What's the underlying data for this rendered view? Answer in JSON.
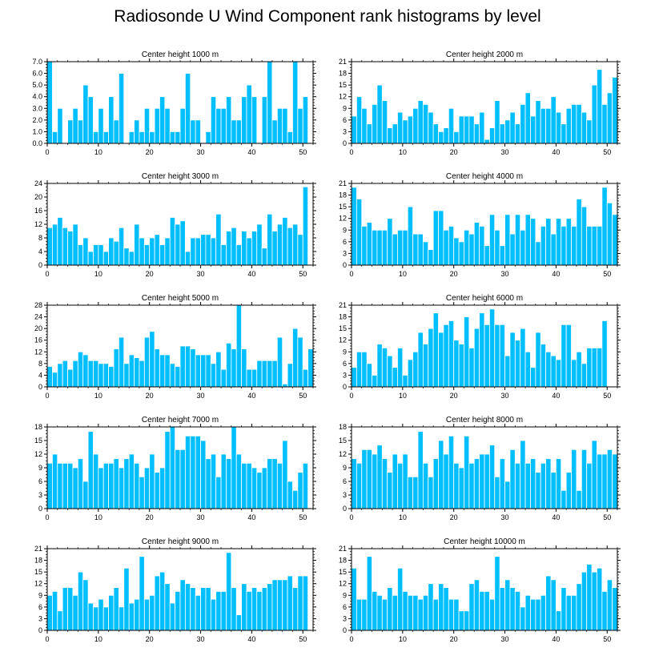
{
  "title": "Radiosonde U Wind Component rank histograms by level",
  "colors": {
    "bar": "#00BFFF",
    "bar_edge": "#ffffff",
    "axis": "#000000"
  },
  "chart_data": [
    {
      "type": "bar",
      "title": "Center height 1000 m",
      "xlim": [
        0,
        52
      ],
      "ylim": [
        0,
        7
      ],
      "yticks": [
        0,
        1,
        2,
        3,
        4,
        5,
        6,
        7
      ],
      "ytick_labels": [
        "0.0",
        "1.0",
        "2.0",
        "3.0",
        "4.0",
        "5.0",
        "6.0",
        "7.0"
      ],
      "xticks": [
        0,
        10,
        20,
        30,
        40,
        50
      ],
      "values": [
        7,
        1,
        3,
        0,
        2,
        3,
        2,
        5,
        4,
        1,
        3,
        1,
        4,
        2,
        6,
        0,
        1,
        2,
        1,
        3,
        1,
        3,
        4,
        3,
        1,
        1,
        3,
        6,
        2,
        2,
        0,
        1,
        4,
        3,
        3,
        4,
        2,
        2,
        4,
        5,
        4,
        0,
        4,
        7,
        2,
        3,
        3,
        1,
        7,
        3,
        4
      ]
    },
    {
      "type": "bar",
      "title": "Center height 2000 m",
      "xlim": [
        0,
        52
      ],
      "ylim": [
        0,
        21
      ],
      "yticks": [
        0,
        3,
        6,
        9,
        12,
        15,
        18,
        21
      ],
      "ytick_labels": [
        "0",
        "3",
        "6",
        "9",
        "12",
        "15",
        "18",
        "21"
      ],
      "xticks": [
        0,
        10,
        20,
        30,
        40,
        50
      ],
      "values": [
        7,
        12,
        9,
        5,
        10,
        15,
        11,
        4,
        5,
        8,
        6,
        7,
        9,
        11,
        10,
        8,
        5,
        3,
        4,
        9,
        3,
        7,
        7,
        7,
        5,
        8,
        1,
        4,
        11,
        5,
        6,
        8,
        5,
        10,
        13,
        7,
        11,
        9,
        9,
        12,
        8,
        5,
        9,
        10,
        10,
        8,
        6,
        15,
        19,
        10,
        13,
        17
      ]
    },
    {
      "type": "bar",
      "title": "Center height 3000 m",
      "xlim": [
        0,
        52
      ],
      "ylim": [
        0,
        24
      ],
      "yticks": [
        0,
        4,
        8,
        12,
        16,
        20,
        24
      ],
      "ytick_labels": [
        "0",
        "4",
        "8",
        "12",
        "16",
        "20",
        "24"
      ],
      "xticks": [
        0,
        10,
        20,
        30,
        40,
        50
      ],
      "values": [
        11,
        12,
        14,
        11,
        10,
        12,
        6,
        8,
        4,
        6,
        6,
        4,
        8,
        7,
        11,
        5,
        4,
        12,
        8,
        6,
        8,
        9,
        6,
        8,
        14,
        12,
        13,
        4,
        8,
        8,
        9,
        9,
        8,
        15,
        6,
        10,
        11,
        6,
        10,
        8,
        10,
        12,
        5,
        15,
        10,
        12,
        14,
        11,
        12,
        9,
        23
      ]
    },
    {
      "type": "bar",
      "title": "Center height 4000 m",
      "xlim": [
        0,
        52
      ],
      "ylim": [
        0,
        21
      ],
      "yticks": [
        0,
        3,
        6,
        9,
        12,
        15,
        18,
        21
      ],
      "ytick_labels": [
        "0",
        "3",
        "6",
        "9",
        "12",
        "15",
        "18",
        "21"
      ],
      "xticks": [
        0,
        10,
        20,
        30,
        40,
        50
      ],
      "values": [
        20,
        17,
        10,
        11,
        9,
        9,
        9,
        12,
        8,
        9,
        9,
        15,
        8,
        8,
        6,
        4,
        14,
        14,
        9,
        10,
        7,
        6,
        9,
        8,
        11,
        10,
        5,
        13,
        9,
        5,
        13,
        8,
        13,
        9,
        13,
        12,
        6,
        10,
        12,
        8,
        12,
        10,
        12,
        10,
        17,
        15,
        10,
        10,
        10,
        20,
        16,
        13
      ]
    },
    {
      "type": "bar",
      "title": "Center height 5000 m",
      "xlim": [
        0,
        52
      ],
      "ylim": [
        0,
        28
      ],
      "yticks": [
        0,
        4,
        8,
        12,
        16,
        20,
        24,
        28
      ],
      "ytick_labels": [
        "0",
        "4",
        "8",
        "12",
        "16",
        "20",
        "24",
        "28"
      ],
      "xticks": [
        0,
        10,
        20,
        30,
        40,
        50
      ],
      "values": [
        7,
        5,
        8,
        9,
        6,
        9,
        12,
        11,
        9,
        9,
        8,
        8,
        7,
        13,
        17,
        8,
        11,
        10,
        9,
        17,
        19,
        13,
        11,
        11,
        8,
        7,
        14,
        14,
        13,
        11,
        11,
        11,
        8,
        12,
        6,
        15,
        13,
        28,
        13,
        6,
        6,
        9,
        9,
        9,
        9,
        17,
        1,
        8,
        20,
        17,
        6,
        13
      ]
    },
    {
      "type": "bar",
      "title": "Center height 6000 m",
      "xlim": [
        0,
        52
      ],
      "ylim": [
        0,
        21
      ],
      "yticks": [
        0,
        3,
        6,
        9,
        12,
        15,
        18,
        21
      ],
      "ytick_labels": [
        "0",
        "3",
        "6",
        "9",
        "12",
        "15",
        "18",
        "21"
      ],
      "xticks": [
        0,
        10,
        20,
        30,
        40,
        50
      ],
      "values": [
        5,
        9,
        9,
        6,
        3,
        11,
        10,
        8,
        5,
        10,
        3,
        7,
        9,
        14,
        11,
        15,
        19,
        14,
        16,
        17,
        12,
        11,
        18,
        10,
        15,
        19,
        16,
        20,
        16,
        16,
        8,
        14,
        12,
        15,
        9,
        5,
        14,
        11,
        9,
        8,
        7,
        16,
        16,
        7,
        9,
        6,
        10,
        10,
        10,
        17
      ]
    },
    {
      "type": "bar",
      "title": "Center height 7000 m",
      "xlim": [
        0,
        52
      ],
      "ylim": [
        0,
        18
      ],
      "yticks": [
        0,
        3,
        6,
        9,
        12,
        15,
        18
      ],
      "ytick_labels": [
        "0",
        "3",
        "6",
        "9",
        "12",
        "15",
        "18"
      ],
      "xticks": [
        0,
        10,
        20,
        30,
        40,
        50
      ],
      "values": [
        10,
        12,
        10,
        10,
        10,
        9,
        11,
        6,
        17,
        12,
        9,
        10,
        10,
        11,
        9,
        11,
        12,
        10,
        7,
        9,
        12,
        8,
        9,
        17,
        18,
        13,
        13,
        16,
        16,
        16,
        15,
        11,
        12,
        7,
        12,
        11,
        18,
        12,
        10,
        10,
        9,
        8,
        9,
        11,
        11,
        10,
        15,
        6,
        4,
        8,
        10
      ]
    },
    {
      "type": "bar",
      "title": "Center height 8000 m",
      "xlim": [
        0,
        52
      ],
      "ylim": [
        0,
        18
      ],
      "yticks": [
        0,
        3,
        6,
        9,
        12,
        15,
        18
      ],
      "ytick_labels": [
        "0",
        "3",
        "6",
        "9",
        "12",
        "15",
        "18"
      ],
      "xticks": [
        0,
        10,
        20,
        30,
        40,
        50
      ],
      "values": [
        11,
        10,
        13,
        13,
        12,
        14,
        11,
        8,
        12,
        10,
        12,
        7,
        7,
        17,
        10,
        7,
        11,
        15,
        12,
        16,
        10,
        9,
        16,
        10,
        11,
        12,
        12,
        14,
        7,
        11,
        6,
        13,
        10,
        15,
        10,
        11,
        8,
        10,
        11,
        8,
        11,
        4,
        8,
        13,
        4,
        13,
        10,
        15,
        12,
        12,
        13,
        12
      ]
    },
    {
      "type": "bar",
      "title": "Center height 9000 m",
      "xlim": [
        0,
        52
      ],
      "ylim": [
        0,
        21
      ],
      "yticks": [
        0,
        3,
        6,
        9,
        12,
        15,
        18,
        21
      ],
      "ytick_labels": [
        "0",
        "3",
        "6",
        "9",
        "12",
        "15",
        "18",
        "21"
      ],
      "xticks": [
        0,
        10,
        20,
        30,
        40,
        50
      ],
      "values": [
        9,
        10,
        5,
        11,
        11,
        9,
        15,
        13,
        7,
        6,
        8,
        6,
        9,
        11,
        6,
        16,
        7,
        8,
        19,
        8,
        9,
        14,
        15,
        12,
        7,
        10,
        13,
        12,
        11,
        9,
        11,
        11,
        8,
        10,
        10,
        20,
        11,
        4,
        12,
        10,
        11,
        10,
        11,
        12,
        13,
        13,
        13,
        14,
        11,
        14,
        14
      ]
    },
    {
      "type": "bar",
      "title": "Center height 10000 m",
      "xlim": [
        0,
        52
      ],
      "ylim": [
        0,
        21
      ],
      "yticks": [
        0,
        3,
        6,
        9,
        12,
        15,
        18,
        21
      ],
      "ytick_labels": [
        "0",
        "3",
        "6",
        "9",
        "12",
        "15",
        "18",
        "21"
      ],
      "xticks": [
        0,
        10,
        20,
        30,
        40,
        50
      ],
      "values": [
        16,
        8,
        8,
        19,
        10,
        9,
        8,
        11,
        9,
        16,
        10,
        9,
        9,
        8,
        9,
        12,
        8,
        12,
        11,
        8,
        8,
        5,
        5,
        12,
        13,
        10,
        10,
        8,
        19,
        11,
        13,
        11,
        10,
        6,
        9,
        8,
        8,
        9,
        14,
        13,
        5,
        11,
        9,
        9,
        12,
        15,
        17,
        15,
        16,
        10,
        13,
        11
      ]
    }
  ]
}
